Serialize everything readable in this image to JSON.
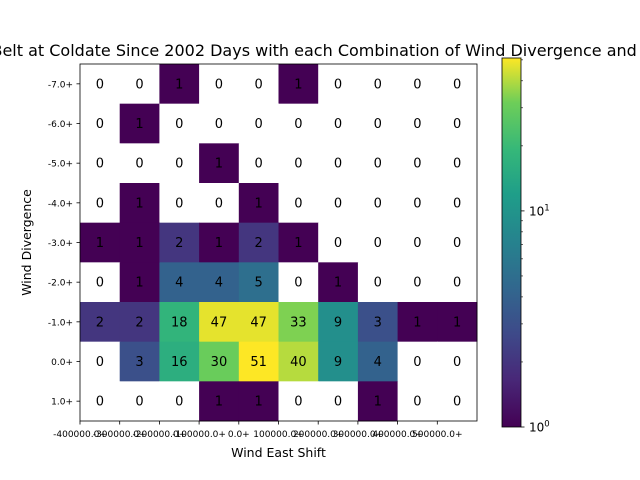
{
  "chart_data": {
    "type": "heatmap",
    "title": "Number of Days in Westerly Wind Belt at Coldate Since 2002 Days with each Combination of Wind Divergence and Wind East Shift",
    "xlabel": "Wind East Shift",
    "ylabel": "Wind Divergence",
    "x_tick_labels": [
      "-400000.0+",
      "-300000.0+",
      "-200000.0+",
      "-100000.0+",
      "0.0+",
      "100000.0+",
      "200000.0+",
      "300000.0+",
      "400000.0+",
      "500000.0+"
    ],
    "y_tick_labels": [
      "-7.0+",
      "-6.0+",
      "-5.0+",
      "-4.0+",
      "-3.0+",
      "-2.0+",
      "-1.0+",
      "0.0+",
      "1.0+"
    ],
    "values": [
      [
        0,
        0,
        1,
        0,
        0,
        1,
        0,
        0,
        0,
        0
      ],
      [
        0,
        1,
        0,
        0,
        0,
        0,
        0,
        0,
        0,
        0
      ],
      [
        0,
        0,
        0,
        1,
        0,
        0,
        0,
        0,
        0,
        0
      ],
      [
        0,
        1,
        0,
        0,
        1,
        0,
        0,
        0,
        0,
        0
      ],
      [
        1,
        1,
        2,
        1,
        2,
        1,
        0,
        0,
        0,
        0
      ],
      [
        0,
        1,
        4,
        4,
        5,
        0,
        1,
        0,
        0,
        0
      ],
      [
        2,
        2,
        18,
        47,
        47,
        33,
        9,
        3,
        1,
        1
      ],
      [
        0,
        3,
        16,
        30,
        51,
        40,
        9,
        4,
        0,
        0
      ],
      [
        0,
        0,
        0,
        1,
        1,
        0,
        0,
        1,
        0,
        0
      ]
    ],
    "colorbar": {
      "scale": "log",
      "colormap": "viridis",
      "range": [
        1,
        51
      ],
      "ticks": [
        {
          "value": 1,
          "label_base": "10",
          "label_exp": "0"
        },
        {
          "value": 10,
          "label_base": "10",
          "label_exp": "1"
        }
      ]
    },
    "zero_cells_color": "#ffffff",
    "grid": false
  }
}
